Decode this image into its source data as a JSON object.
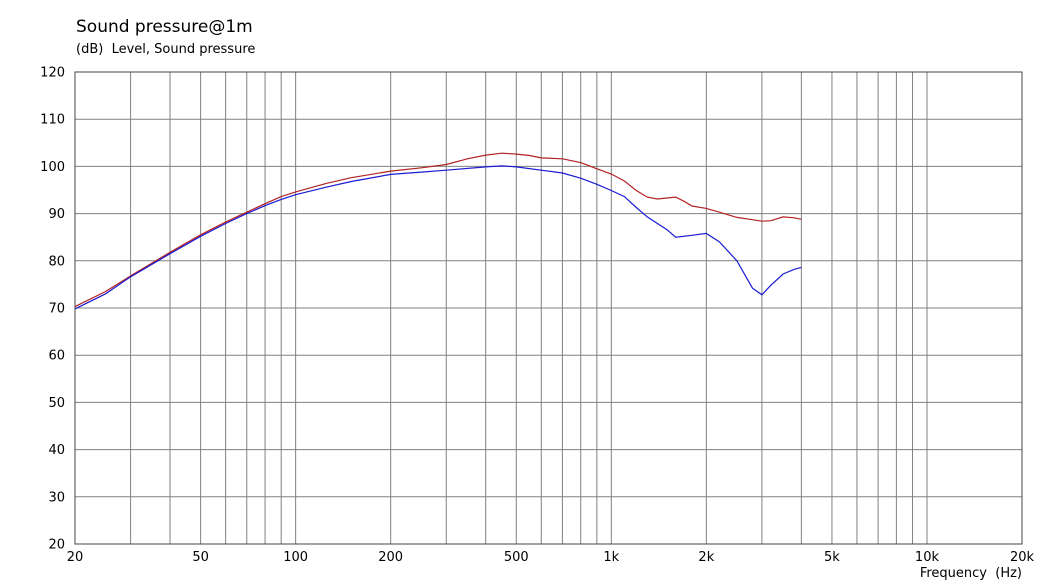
{
  "chart_data": {
    "type": "line",
    "title": "Sound pressure@1m",
    "subtitle": "(dB)  Level, Sound pressure",
    "xlabel": "Frequency  (Hz)",
    "x_scale": "log",
    "xlim": [
      20,
      20000
    ],
    "ylim": [
      20,
      120
    ],
    "grid": true,
    "y_ticks": [
      20,
      30,
      40,
      50,
      60,
      70,
      80,
      90,
      100,
      110,
      120
    ],
    "x_ticks": [
      {
        "value": 20,
        "label": "20"
      },
      {
        "value": 50,
        "label": "50"
      },
      {
        "value": 100,
        "label": "100"
      },
      {
        "value": 200,
        "label": "200"
      },
      {
        "value": 500,
        "label": "500"
      },
      {
        "value": 1000,
        "label": "1k"
      },
      {
        "value": 2000,
        "label": "2k"
      },
      {
        "value": 5000,
        "label": "5k"
      },
      {
        "value": 10000,
        "label": "10k"
      },
      {
        "value": 20000,
        "label": "20k"
      }
    ],
    "series": [
      {
        "color": "#b22222",
        "points": [
          [
            20,
            70.3
          ],
          [
            25,
            73.5
          ],
          [
            30,
            76.8
          ],
          [
            40,
            81.8
          ],
          [
            50,
            85.5
          ],
          [
            60,
            88.2
          ],
          [
            70,
            90.3
          ],
          [
            80,
            92.1
          ],
          [
            90,
            93.6
          ],
          [
            100,
            94.6
          ],
          [
            125,
            96.4
          ],
          [
            150,
            97.6
          ],
          [
            200,
            99.0
          ],
          [
            250,
            99.7
          ],
          [
            300,
            100.4
          ],
          [
            350,
            101.6
          ],
          [
            400,
            102.4
          ],
          [
            450,
            102.8
          ],
          [
            500,
            102.6
          ],
          [
            550,
            102.3
          ],
          [
            600,
            101.8
          ],
          [
            700,
            101.6
          ],
          [
            800,
            100.8
          ],
          [
            900,
            99.5
          ],
          [
            1000,
            98.4
          ],
          [
            1100,
            96.9
          ],
          [
            1200,
            94.9
          ],
          [
            1300,
            93.5
          ],
          [
            1400,
            93.1
          ],
          [
            1500,
            93.3
          ],
          [
            1600,
            93.5
          ],
          [
            1700,
            92.6
          ],
          [
            1800,
            91.6
          ],
          [
            2000,
            91.1
          ],
          [
            2200,
            90.3
          ],
          [
            2500,
            89.2
          ],
          [
            2800,
            88.7
          ],
          [
            3000,
            88.4
          ],
          [
            3200,
            88.5
          ],
          [
            3500,
            89.3
          ],
          [
            3800,
            89.1
          ],
          [
            4000,
            88.8
          ]
        ]
      },
      {
        "color": "#1a1ad4",
        "points": [
          [
            20,
            69.8
          ],
          [
            25,
            73.0
          ],
          [
            30,
            76.6
          ],
          [
            40,
            81.5
          ],
          [
            50,
            85.2
          ],
          [
            60,
            87.9
          ],
          [
            70,
            90.0
          ],
          [
            80,
            91.7
          ],
          [
            90,
            93.0
          ],
          [
            100,
            94.0
          ],
          [
            125,
            95.6
          ],
          [
            150,
            96.8
          ],
          [
            200,
            98.3
          ],
          [
            250,
            98.8
          ],
          [
            300,
            99.2
          ],
          [
            400,
            99.9
          ],
          [
            450,
            100.1
          ],
          [
            500,
            99.9
          ],
          [
            600,
            99.2
          ],
          [
            700,
            98.6
          ],
          [
            800,
            97.5
          ],
          [
            900,
            96.2
          ],
          [
            1000,
            94.9
          ],
          [
            1100,
            93.6
          ],
          [
            1200,
            91.3
          ],
          [
            1300,
            89.3
          ],
          [
            1400,
            87.9
          ],
          [
            1500,
            86.6
          ],
          [
            1600,
            85.0
          ],
          [
            1800,
            85.4
          ],
          [
            2000,
            85.8
          ],
          [
            2200,
            84.0
          ],
          [
            2500,
            80.0
          ],
          [
            2800,
            74.2
          ],
          [
            3000,
            72.8
          ],
          [
            3200,
            74.8
          ],
          [
            3500,
            77.2
          ],
          [
            3800,
            78.2
          ],
          [
            4000,
            78.6
          ]
        ]
      }
    ]
  }
}
